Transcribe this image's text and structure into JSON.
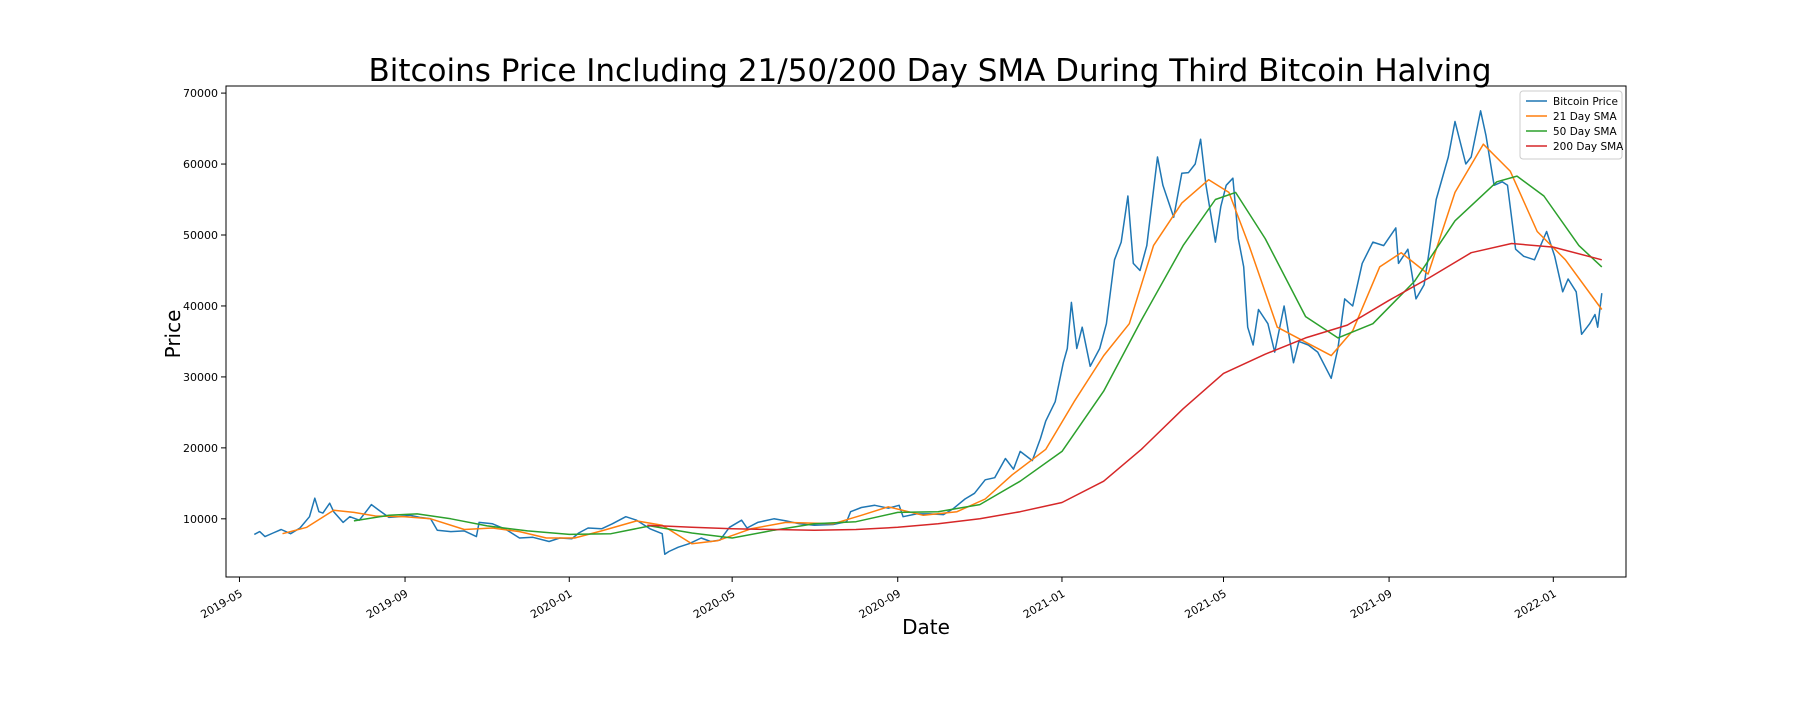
{
  "chart_data": {
    "type": "line",
    "title": "Bitcoins Price Including 21/50/200 Day SMA During Third Bitcoin Halving",
    "xlabel": "Date",
    "ylabel": "Price",
    "xlim": [
      "2019-04-21",
      "2022-02-24"
    ],
    "ylim": [
      1800,
      71000
    ],
    "x_ticks": [
      "2019-05",
      "2019-09",
      "2020-01",
      "2020-05",
      "2020-09",
      "2021-01",
      "2021-05",
      "2021-09",
      "2022-01"
    ],
    "y_ticks": [
      10000,
      20000,
      30000,
      40000,
      50000,
      60000,
      70000
    ],
    "grid": false,
    "legend_position": "top-right",
    "colors": {
      "Bitcoin Price": "#1f77b4",
      "21 Day SMA": "#ff7f0e",
      "50 Day SMA": "#2ca02c",
      "200 Day SMA": "#d62728"
    },
    "series": [
      {
        "name": "Bitcoin Price",
        "color": "#1f77b4",
        "points": [
          [
            "2019-05-12",
            7800
          ],
          [
            "2019-05-16",
            8200
          ],
          [
            "2019-05-20",
            7500
          ],
          [
            "2019-05-26",
            8000
          ],
          [
            "2019-06-01",
            8500
          ],
          [
            "2019-06-08",
            7900
          ],
          [
            "2019-06-15",
            8700
          ],
          [
            "2019-06-22",
            10300
          ],
          [
            "2019-06-26",
            12900
          ],
          [
            "2019-06-29",
            11000
          ],
          [
            "2019-07-02",
            10800
          ],
          [
            "2019-07-07",
            12200
          ],
          [
            "2019-07-10",
            11000
          ],
          [
            "2019-07-17",
            9500
          ],
          [
            "2019-07-22",
            10300
          ],
          [
            "2019-07-29",
            9800
          ],
          [
            "2019-08-03",
            11000
          ],
          [
            "2019-08-07",
            12000
          ],
          [
            "2019-08-12",
            11300
          ],
          [
            "2019-08-20",
            10200
          ],
          [
            "2019-08-27",
            10300
          ],
          [
            "2019-09-05",
            10500
          ],
          [
            "2019-09-12",
            10200
          ],
          [
            "2019-09-20",
            10000
          ],
          [
            "2019-09-25",
            8400
          ],
          [
            "2019-10-05",
            8200
          ],
          [
            "2019-10-15",
            8300
          ],
          [
            "2019-10-24",
            7500
          ],
          [
            "2019-10-26",
            9500
          ],
          [
            "2019-11-05",
            9300
          ],
          [
            "2019-11-15",
            8500
          ],
          [
            "2019-11-25",
            7300
          ],
          [
            "2019-12-05",
            7400
          ],
          [
            "2019-12-17",
            6800
          ],
          [
            "2019-12-25",
            7300
          ],
          [
            "2020-01-03",
            7200
          ],
          [
            "2020-01-08",
            8000
          ],
          [
            "2020-01-15",
            8700
          ],
          [
            "2020-01-25",
            8600
          ],
          [
            "2020-02-02",
            9300
          ],
          [
            "2020-02-12",
            10300
          ],
          [
            "2020-02-20",
            9800
          ],
          [
            "2020-03-01",
            8600
          ],
          [
            "2020-03-10",
            7900
          ],
          [
            "2020-03-12",
            5000
          ],
          [
            "2020-03-15",
            5400
          ],
          [
            "2020-03-22",
            6000
          ],
          [
            "2020-03-30",
            6500
          ],
          [
            "2020-04-08",
            7300
          ],
          [
            "2020-04-15",
            6800
          ],
          [
            "2020-04-22",
            7000
          ],
          [
            "2020-04-29",
            8800
          ],
          [
            "2020-05-08",
            9800
          ],
          [
            "2020-05-12",
            8700
          ],
          [
            "2020-05-20",
            9500
          ],
          [
            "2020-06-01",
            10000
          ],
          [
            "2020-06-10",
            9700
          ],
          [
            "2020-06-20",
            9300
          ],
          [
            "2020-07-01",
            9100
          ],
          [
            "2020-07-15",
            9200
          ],
          [
            "2020-07-25",
            9600
          ],
          [
            "2020-07-28",
            11000
          ],
          [
            "2020-08-05",
            11600
          ],
          [
            "2020-08-15",
            11900
          ],
          [
            "2020-08-25",
            11500
          ],
          [
            "2020-09-02",
            11900
          ],
          [
            "2020-09-05",
            10300
          ],
          [
            "2020-09-15",
            10700
          ],
          [
            "2020-09-25",
            10700
          ],
          [
            "2020-10-05",
            10600
          ],
          [
            "2020-10-12",
            11400
          ],
          [
            "2020-10-21",
            12800
          ],
          [
            "2020-10-28",
            13600
          ],
          [
            "2020-11-05",
            15500
          ],
          [
            "2020-11-12",
            15800
          ],
          [
            "2020-11-20",
            18500
          ],
          [
            "2020-11-26",
            17000
          ],
          [
            "2020-12-01",
            19500
          ],
          [
            "2020-12-10",
            18200
          ],
          [
            "2020-12-16",
            21300
          ],
          [
            "2020-12-20",
            23800
          ],
          [
            "2020-12-27",
            26500
          ],
          [
            "2021-01-02",
            32000
          ],
          [
            "2021-01-05",
            34000
          ],
          [
            "2021-01-08",
            40500
          ],
          [
            "2021-01-12",
            34000
          ],
          [
            "2021-01-16",
            37000
          ],
          [
            "2021-01-22",
            31500
          ],
          [
            "2021-01-29",
            34000
          ],
          [
            "2021-02-03",
            37500
          ],
          [
            "2021-02-09",
            46500
          ],
          [
            "2021-02-14",
            49000
          ],
          [
            "2021-02-19",
            55500
          ],
          [
            "2021-02-23",
            46000
          ],
          [
            "2021-02-28",
            45000
          ],
          [
            "2021-03-05",
            48500
          ],
          [
            "2021-03-13",
            61000
          ],
          [
            "2021-03-17",
            57000
          ],
          [
            "2021-03-25",
            52500
          ],
          [
            "2021-03-31",
            58700
          ],
          [
            "2021-04-05",
            58800
          ],
          [
            "2021-04-10",
            60000
          ],
          [
            "2021-04-14",
            63500
          ],
          [
            "2021-04-18",
            57000
          ],
          [
            "2021-04-25",
            49000
          ],
          [
            "2021-04-29",
            54000
          ],
          [
            "2021-05-03",
            57000
          ],
          [
            "2021-05-08",
            58000
          ],
          [
            "2021-05-12",
            49500
          ],
          [
            "2021-05-16",
            45500
          ],
          [
            "2021-05-19",
            37000
          ],
          [
            "2021-05-23",
            34500
          ],
          [
            "2021-05-27",
            39500
          ],
          [
            "2021-06-03",
            37500
          ],
          [
            "2021-06-08",
            33500
          ],
          [
            "2021-06-15",
            40000
          ],
          [
            "2021-06-22",
            32000
          ],
          [
            "2021-06-26",
            35000
          ],
          [
            "2021-07-03",
            34500
          ],
          [
            "2021-07-10",
            33500
          ],
          [
            "2021-07-20",
            29800
          ],
          [
            "2021-07-25",
            34000
          ],
          [
            "2021-07-30",
            41000
          ],
          [
            "2021-08-05",
            40000
          ],
          [
            "2021-08-12",
            46000
          ],
          [
            "2021-08-20",
            49000
          ],
          [
            "2021-08-28",
            48500
          ],
          [
            "2021-09-06",
            51000
          ],
          [
            "2021-09-08",
            46000
          ],
          [
            "2021-09-15",
            48000
          ],
          [
            "2021-09-21",
            41000
          ],
          [
            "2021-09-27",
            43000
          ],
          [
            "2021-10-01",
            48000
          ],
          [
            "2021-10-06",
            55000
          ],
          [
            "2021-10-15",
            61000
          ],
          [
            "2021-10-20",
            66000
          ],
          [
            "2021-10-28",
            60000
          ],
          [
            "2021-11-01",
            61000
          ],
          [
            "2021-11-08",
            67500
          ],
          [
            "2021-11-12",
            64000
          ],
          [
            "2021-11-18",
            57000
          ],
          [
            "2021-11-24",
            57500
          ],
          [
            "2021-11-28",
            57000
          ],
          [
            "2021-12-04",
            48000
          ],
          [
            "2021-12-10",
            47000
          ],
          [
            "2021-12-18",
            46500
          ],
          [
            "2021-12-27",
            50500
          ],
          [
            "2022-01-02",
            47000
          ],
          [
            "2022-01-08",
            42000
          ],
          [
            "2022-01-12",
            43800
          ],
          [
            "2022-01-18",
            42000
          ],
          [
            "2022-01-22",
            36000
          ],
          [
            "2022-01-28",
            37500
          ],
          [
            "2022-02-01",
            38800
          ],
          [
            "2022-02-03",
            37000
          ],
          [
            "2022-02-06",
            41800
          ]
        ]
      },
      {
        "name": "21 Day SMA",
        "color": "#ff7f0e",
        "points": [
          [
            "2019-06-02",
            7900
          ],
          [
            "2019-06-20",
            8800
          ],
          [
            "2019-07-10",
            11200
          ],
          [
            "2019-07-25",
            10900
          ],
          [
            "2019-08-10",
            10400
          ],
          [
            "2019-09-01",
            10300
          ],
          [
            "2019-09-20",
            10000
          ],
          [
            "2019-10-15",
            8500
          ],
          [
            "2019-11-05",
            8700
          ],
          [
            "2019-11-25",
            8200
          ],
          [
            "2019-12-15",
            7300
          ],
          [
            "2020-01-05",
            7300
          ],
          [
            "2020-01-25",
            8300
          ],
          [
            "2020-02-20",
            9700
          ],
          [
            "2020-03-10",
            9100
          ],
          [
            "2020-04-01",
            6500
          ],
          [
            "2020-04-20",
            6900
          ],
          [
            "2020-05-15",
            8600
          ],
          [
            "2020-06-10",
            9500
          ],
          [
            "2020-07-15",
            9300
          ],
          [
            "2020-08-05",
            10500
          ],
          [
            "2020-08-25",
            11700
          ],
          [
            "2020-09-20",
            10500
          ],
          [
            "2020-10-15",
            11000
          ],
          [
            "2020-11-05",
            12800
          ],
          [
            "2020-11-25",
            16200
          ],
          [
            "2020-12-20",
            19800
          ],
          [
            "2021-01-10",
            26500
          ],
          [
            "2021-02-01",
            33000
          ],
          [
            "2021-02-20",
            37500
          ],
          [
            "2021-03-10",
            48500
          ],
          [
            "2021-03-31",
            54500
          ],
          [
            "2021-04-20",
            57800
          ],
          [
            "2021-05-05",
            56000
          ],
          [
            "2021-05-20",
            48500
          ],
          [
            "2021-06-10",
            37000
          ],
          [
            "2021-06-30",
            35000
          ],
          [
            "2021-07-20",
            33000
          ],
          [
            "2021-08-05",
            36500
          ],
          [
            "2021-08-25",
            45500
          ],
          [
            "2021-09-10",
            47500
          ],
          [
            "2021-09-30",
            44500
          ],
          [
            "2021-10-20",
            56000
          ],
          [
            "2021-11-10",
            62800
          ],
          [
            "2021-11-30",
            59000
          ],
          [
            "2021-12-20",
            50500
          ],
          [
            "2022-01-10",
            46500
          ],
          [
            "2022-02-06",
            39500
          ]
        ]
      },
      {
        "name": "50 Day SMA",
        "color": "#2ca02c",
        "points": [
          [
            "2019-07-25",
            9700
          ],
          [
            "2019-08-20",
            10500
          ],
          [
            "2019-09-10",
            10700
          ],
          [
            "2019-10-05",
            10000
          ],
          [
            "2019-11-01",
            9000
          ],
          [
            "2019-12-01",
            8300
          ],
          [
            "2020-01-01",
            7800
          ],
          [
            "2020-02-01",
            7900
          ],
          [
            "2020-03-01",
            9000
          ],
          [
            "2020-04-01",
            8000
          ],
          [
            "2020-05-01",
            7300
          ],
          [
            "2020-06-01",
            8400
          ],
          [
            "2020-07-01",
            9300
          ],
          [
            "2020-08-01",
            9600
          ],
          [
            "2020-09-01",
            10900
          ],
          [
            "2020-10-01",
            11000
          ],
          [
            "2020-11-01",
            12000
          ],
          [
            "2020-12-01",
            15300
          ],
          [
            "2021-01-01",
            19500
          ],
          [
            "2021-02-01",
            28000
          ],
          [
            "2021-03-01",
            38000
          ],
          [
            "2021-04-01",
            48500
          ],
          [
            "2021-04-25",
            55000
          ],
          [
            "2021-05-10",
            56000
          ],
          [
            "2021-06-01",
            49500
          ],
          [
            "2021-07-01",
            38500
          ],
          [
            "2021-07-25",
            35500
          ],
          [
            "2021-08-20",
            37500
          ],
          [
            "2021-09-20",
            43500
          ],
          [
            "2021-10-20",
            52000
          ],
          [
            "2021-11-20",
            57500
          ],
          [
            "2021-12-05",
            58300
          ],
          [
            "2021-12-25",
            55500
          ],
          [
            "2022-01-20",
            48500
          ],
          [
            "2022-02-06",
            45500
          ]
        ]
      },
      {
        "name": "200 Day SMA",
        "color": "#d62728",
        "points": [
          [
            "2020-02-28",
            9100
          ],
          [
            "2020-04-01",
            8800
          ],
          [
            "2020-05-01",
            8600
          ],
          [
            "2020-06-01",
            8500
          ],
          [
            "2020-07-01",
            8400
          ],
          [
            "2020-08-01",
            8500
          ],
          [
            "2020-09-01",
            8800
          ],
          [
            "2020-10-01",
            9300
          ],
          [
            "2020-11-01",
            10000
          ],
          [
            "2020-12-01",
            11000
          ],
          [
            "2021-01-01",
            12300
          ],
          [
            "2021-02-01",
            15300
          ],
          [
            "2021-03-01",
            19800
          ],
          [
            "2021-04-01",
            25500
          ],
          [
            "2021-05-01",
            30500
          ],
          [
            "2021-06-01",
            33200
          ],
          [
            "2021-07-01",
            35500
          ],
          [
            "2021-08-01",
            37300
          ],
          [
            "2021-09-01",
            40800
          ],
          [
            "2021-10-01",
            44000
          ],
          [
            "2021-11-01",
            47500
          ],
          [
            "2021-12-01",
            48800
          ],
          [
            "2022-01-01",
            48300
          ],
          [
            "2022-02-06",
            46500
          ]
        ]
      }
    ]
  }
}
